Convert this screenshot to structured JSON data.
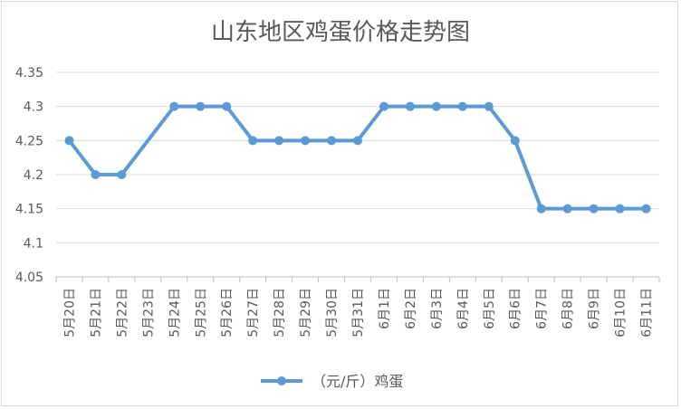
{
  "chart_data": {
    "type": "line",
    "title": "山东地区鸡蛋价格走势图",
    "categories": [
      "5月20日",
      "5月21日",
      "5月22日",
      "5月23日",
      "5月24日",
      "5月25日",
      "5月26日",
      "5月27日",
      "5月28日",
      "5月29日",
      "5月30日",
      "5月31日",
      "6月1日",
      "6月2日",
      "6月3日",
      "6月4日",
      "6月5日",
      "6月6日",
      "6月7日",
      "6月8日",
      "6月9日",
      "6月10日",
      "6月11日"
    ],
    "series": [
      {
        "name": "（元/斤）鸡蛋",
        "values": [
          4.25,
          4.2,
          4.2,
          null,
          4.3,
          4.3,
          4.3,
          4.25,
          4.25,
          4.25,
          4.25,
          4.25,
          4.3,
          4.3,
          4.3,
          4.3,
          4.3,
          4.25,
          4.15,
          4.15,
          4.15,
          4.15,
          4.15
        ],
        "color": "#5b9bd5"
      }
    ],
    "yticks": [
      "4.05",
      "4.1",
      "4.15",
      "4.2",
      "4.25",
      "4.3",
      "4.35"
    ],
    "ylim": [
      4.05,
      4.35
    ],
    "grid": true,
    "legend": "bottom"
  }
}
